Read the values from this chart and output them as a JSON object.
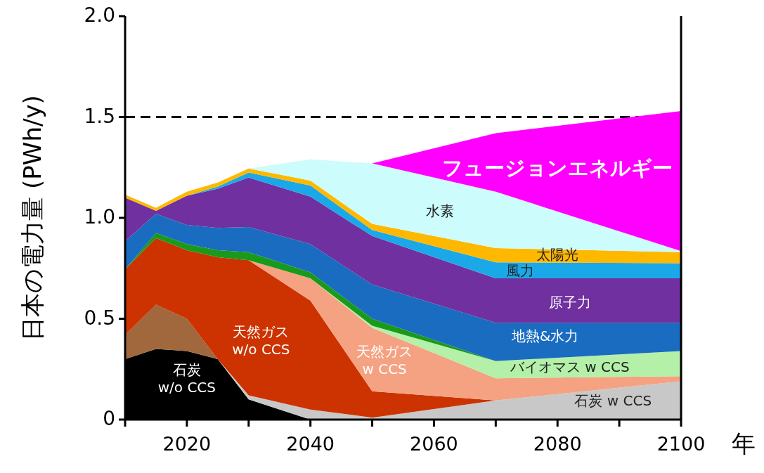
{
  "chart_data": {
    "type": "area",
    "stacked": true,
    "ylabel": "日本の電力量 (PWh/y)",
    "xlabel": "年",
    "x": [
      2010,
      2015,
      2020,
      2025,
      2030,
      2040,
      2050,
      2070,
      2100
    ],
    "xlim": [
      2010,
      2100
    ],
    "xticks": [
      {
        "value": 2010,
        "label": null
      },
      2020,
      {
        "value": 2030,
        "label": null
      },
      2040,
      {
        "value": 2050,
        "label": null
      },
      2060,
      {
        "value": 2070,
        "label": null
      },
      2080,
      {
        "value": 2090,
        "label": null
      },
      2100
    ],
    "ylim": [
      0,
      2
    ],
    "yticks": [
      0,
      0.5,
      {
        "value": 1,
        "label": "1.0"
      },
      1.5,
      {
        "value": 2,
        "label": "2.0"
      }
    ],
    "grid": false,
    "ref_lines": [
      {
        "axis": "y",
        "value": 1.5,
        "line_style": "dashed",
        "color": "#000000"
      }
    ],
    "series": [
      {
        "name": "石炭 w/o CCS",
        "color": "#000000",
        "values": [
          0.3,
          0.35,
          0.34,
          0.3,
          0.1,
          0,
          null,
          null,
          null
        ]
      },
      {
        "name": "石炭 w CCS",
        "color": "#c8c8c8",
        "values": [
          null,
          null,
          null,
          0,
          0.02,
          0.05,
          0.01,
          0.095,
          0.19
        ]
      },
      {
        "color": "#a0683c",
        "values": [
          0.12,
          0.22,
          0.16,
          0,
          null,
          null,
          null,
          null,
          null
        ]
      },
      {
        "name": "天然ガス w/o CCS",
        "color": "#cc3300",
        "values": [
          0.325,
          0.33,
          0.34,
          0.505,
          0.67,
          0.54,
          0.13,
          0,
          null
        ]
      },
      {
        "name": "天然ガス w CCS",
        "color": "#f5a282",
        "values": [
          null,
          null,
          null,
          null,
          0,
          0.11,
          0.315,
          0.11,
          0.025
        ]
      },
      {
        "name": "バイオマス w CCS",
        "color": "#b4f0a8",
        "values": [
          null,
          null,
          null,
          null,
          null,
          0,
          0.01,
          0.085,
          0.125
        ]
      },
      {
        "color": "#1a9a1a",
        "values": [
          0,
          0.025,
          0.03,
          0.035,
          0.04,
          0.03,
          0.035,
          0,
          null
        ]
      },
      {
        "name": "地熱&水力",
        "color": "#1a6cc0",
        "values": [
          0.14,
          0.095,
          0.095,
          0.11,
          0.125,
          0.14,
          0.17,
          0.19,
          0.14
        ]
      },
      {
        "name": "原子力",
        "color": "#7030a0",
        "values": [
          0.215,
          0.015,
          0.145,
          0.195,
          0.245,
          0.235,
          0.24,
          0.22,
          0.22
        ]
      },
      {
        "name": "風力",
        "color": "#1aa8e8",
        "values": [
          null,
          null,
          0,
          0.01,
          0.025,
          0.055,
          0.03,
          0.08,
          0.075
        ]
      },
      {
        "name": "太陽光",
        "color": "#ffb800",
        "values": [
          0.015,
          0.015,
          0.02,
          0.02,
          0.02,
          0.025,
          0.03,
          0.07,
          0.055
        ]
      },
      {
        "name": "水素",
        "color": "#ccfcfc",
        "values": [
          null,
          null,
          null,
          null,
          0,
          0.105,
          0.3,
          0.28,
          0.005
        ]
      },
      {
        "name": "フュージョンエネルギー",
        "color": "#ff00ff",
        "values": [
          null,
          null,
          null,
          null,
          null,
          null,
          0,
          0.29,
          0.695
        ]
      }
    ]
  }
}
